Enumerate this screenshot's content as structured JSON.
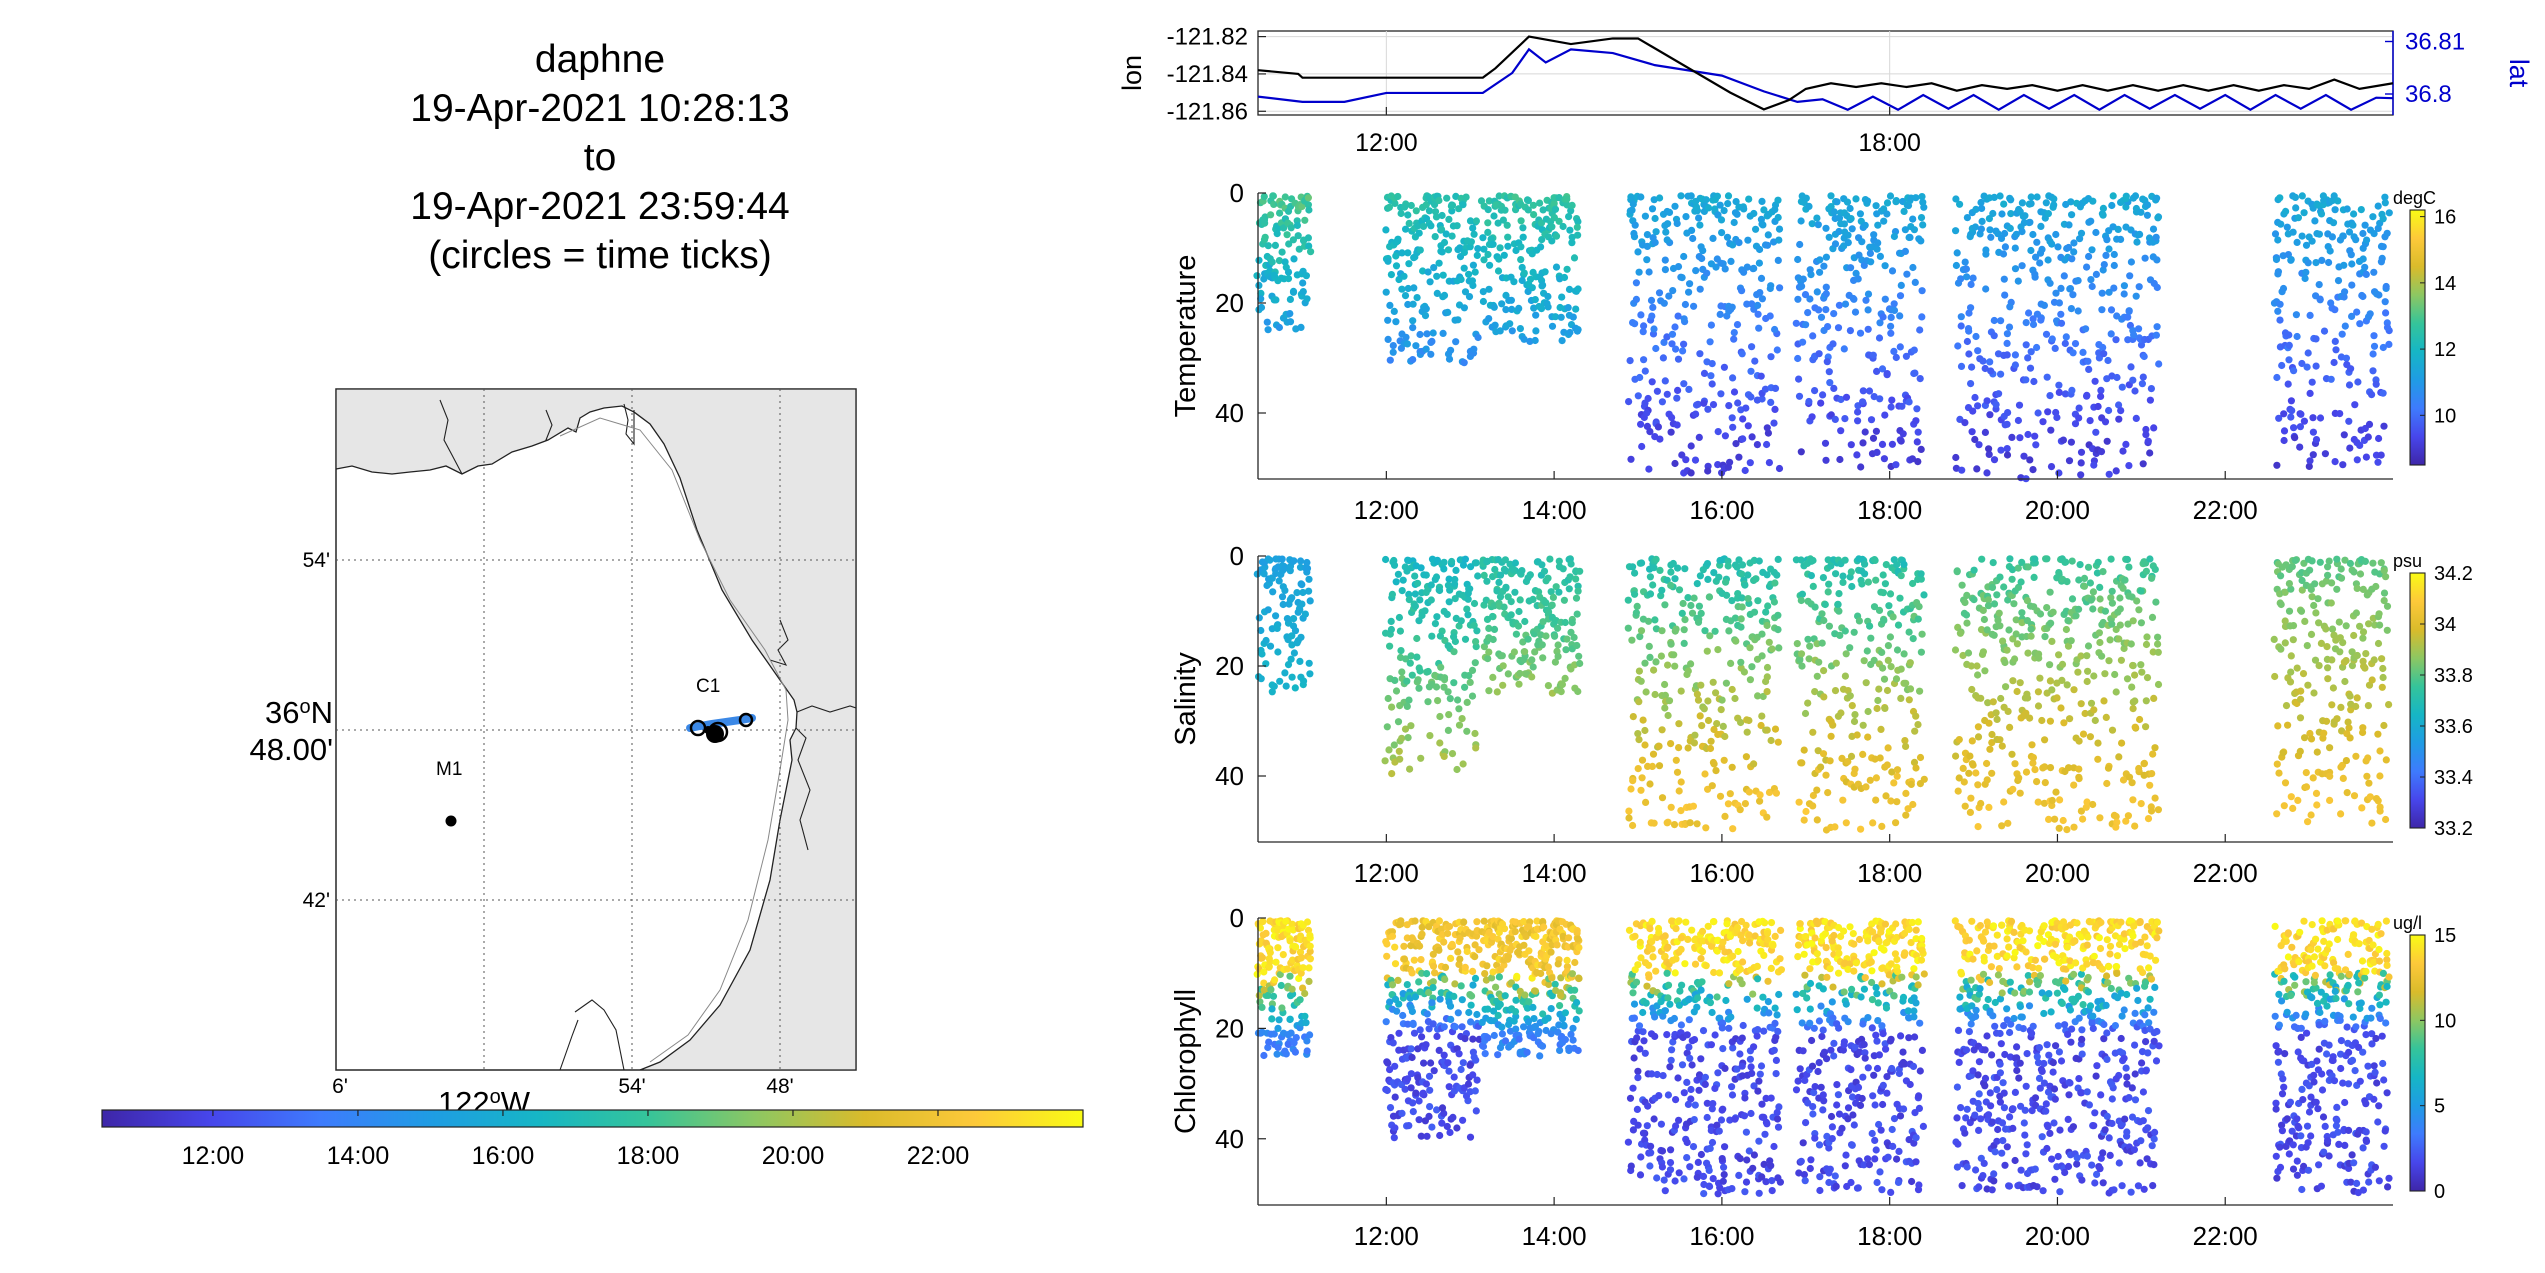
{
  "title": {
    "platform": "daphne",
    "start": "19-Apr-2021 10:28:13",
    "to": "to",
    "end": "19-Apr-2021 23:59:44",
    "note": "(circles = time ticks)"
  },
  "colors": {
    "blue": "#0000cc",
    "land": "#e6e6e6",
    "track": "#3b88e6",
    "parula": [
      "#3e26a8",
      "#4746eb",
      "#3e7bfd",
      "#1f9ce4",
      "#16b6c5",
      "#35c49a",
      "#8dc762",
      "#dabb2b",
      "#fdc93a",
      "#f9fb15"
    ]
  },
  "map": {
    "lat_ticks": [
      "54'",
      "36°N 48.00'",
      "42'"
    ],
    "lat_tick_main": "36",
    "lat_tick_sup": "o",
    "lat_tick_hemi": "N",
    "lat_tick_min": "48.00'",
    "lon_ticks": [
      "6'",
      "122°W",
      "54'",
      "48'"
    ],
    "lon_tick_main": "122",
    "lon_tick_sup": "o",
    "lon_tick_hemi": "W",
    "stations": [
      {
        "name": "C1"
      },
      {
        "name": "M1"
      }
    ],
    "colorbar_ticks": [
      "12:00",
      "14:00",
      "16:00",
      "18:00",
      "20:00",
      "22:00"
    ]
  },
  "chart_data": [
    {
      "type": "line",
      "title": "",
      "x_ticks": [
        "12:00",
        "18:00"
      ],
      "xlim_hours": [
        10.47,
        24.0
      ],
      "series": [
        {
          "name": "lon",
          "color": "#000000",
          "x": [
            10.47,
            10.95,
            11.0,
            11.5,
            12.0,
            12.5,
            13.15,
            13.3,
            13.7,
            14.2,
            14.7,
            15.0,
            16.1,
            16.5,
            16.8,
            17.0,
            17.3,
            17.6,
            17.9,
            18.2,
            18.5,
            18.8,
            19.1,
            19.4,
            19.7,
            20.0,
            20.3,
            20.6,
            20.9,
            21.2,
            21.5,
            21.8,
            22.1,
            22.4,
            22.7,
            23.0,
            23.3,
            23.6,
            24.0
          ],
          "y": [
            -121.838,
            -121.84,
            -121.842,
            -121.842,
            -121.842,
            -121.842,
            -121.842,
            -121.837,
            -121.82,
            -121.824,
            -121.821,
            -121.821,
            -121.85,
            -121.859,
            -121.854,
            -121.848,
            -121.845,
            -121.847,
            -121.845,
            -121.847,
            -121.845,
            -121.849,
            -121.846,
            -121.848,
            -121.846,
            -121.849,
            -121.846,
            -121.849,
            -121.846,
            -121.849,
            -121.846,
            -121.849,
            -121.846,
            -121.849,
            -121.846,
            -121.848,
            -121.843,
            -121.848,
            -121.845
          ]
        },
        {
          "name": "lat",
          "color": "#0000cc",
          "x": [
            10.47,
            11.0,
            11.5,
            12.0,
            13.15,
            13.5,
            13.7,
            13.9,
            14.2,
            14.7,
            15.2,
            16.0,
            16.5,
            16.9,
            17.2,
            17.5,
            17.8,
            18.1,
            18.4,
            18.7,
            19.0,
            19.3,
            19.6,
            19.9,
            20.2,
            20.5,
            20.8,
            21.1,
            21.4,
            21.7,
            22.0,
            22.3,
            22.6,
            22.9,
            23.2,
            23.5,
            23.8,
            24.0
          ],
          "y": [
            36.7995,
            36.7985,
            36.7985,
            36.8002,
            36.8002,
            36.804,
            36.8085,
            36.806,
            36.8085,
            36.8078,
            36.8055,
            36.8035,
            36.8005,
            36.7985,
            36.799,
            36.797,
            36.7995,
            36.797,
            36.7998,
            36.7972,
            36.7998,
            36.797,
            36.7998,
            36.7972,
            36.7998,
            36.797,
            36.7998,
            36.7972,
            36.7998,
            36.7972,
            36.7998,
            36.797,
            36.7998,
            36.7972,
            36.7998,
            36.797,
            36.7993,
            36.7992
          ]
        }
      ],
      "ylabel_left": "lon",
      "ylim_left": [
        -121.862,
        -121.817
      ],
      "yticks_left": [
        "-121.82",
        "-121.84",
        "-121.86"
      ],
      "ylabel_right": "lat",
      "ylim_right": [
        36.796,
        36.812
      ],
      "yticks_right": [
        "36.81",
        "36.8"
      ],
      "grid": true
    },
    {
      "type": "scatter",
      "ylabel": "Temperature",
      "unit": "degC",
      "clim": [
        8.5,
        16.2
      ],
      "colorbar_ticks": [
        "16",
        "14",
        "12",
        "10"
      ],
      "x_ticks": [
        "12:00",
        "14:00",
        "16:00",
        "18:00",
        "20:00",
        "22:00"
      ],
      "y_ticks": [
        "0",
        "20",
        "40"
      ],
      "ylim": [
        0,
        52
      ],
      "xlim_hours": [
        10.47,
        24.0
      ],
      "profile_segments": [
        [
          10.47,
          11.1,
          0.5,
          25,
          13,
          9.5
        ],
        [
          12.0,
          13.1,
          0.5,
          32,
          12.5,
          9.8
        ],
        [
          13.15,
          14.3,
          0.5,
          27,
          12.7,
          10.0
        ],
        [
          14.9,
          16.7,
          0.5,
          52,
          11.5,
          9.2
        ],
        [
          16.9,
          18.4,
          0.5,
          50,
          11.5,
          9.2
        ],
        [
          18.8,
          21.2,
          0.5,
          52,
          11.5,
          9.2
        ],
        [
          22.6,
          23.95,
          0.5,
          50,
          11.5,
          9.2
        ]
      ],
      "sample_step_hours": 0.022
    },
    {
      "type": "scatter",
      "ylabel": "Salinity",
      "unit": "psu",
      "clim": [
        33.2,
        34.2
      ],
      "colorbar_ticks": [
        "34.2",
        "34",
        "33.8",
        "33.6",
        "33.4",
        "33.2"
      ],
      "x_ticks": [
        "12:00",
        "14:00",
        "16:00",
        "18:00",
        "20:00",
        "22:00"
      ],
      "y_ticks": [
        "0",
        "20",
        "40"
      ],
      "ylim": [
        0,
        52
      ],
      "xlim_hours": [
        10.47,
        24.0
      ],
      "profile_segments": [
        [
          10.47,
          11.1,
          0.5,
          25,
          33.55,
          33.7
        ],
        [
          12.0,
          13.1,
          0.5,
          40,
          33.65,
          33.95
        ],
        [
          13.15,
          14.3,
          0.5,
          25,
          33.7,
          34.0
        ],
        [
          14.9,
          16.7,
          0.5,
          50,
          33.7,
          34.05
        ],
        [
          16.9,
          18.4,
          0.5,
          50,
          33.7,
          34.05
        ],
        [
          18.8,
          21.2,
          0.5,
          50,
          33.75,
          34.05
        ],
        [
          22.6,
          23.95,
          0.5,
          50,
          33.8,
          34.05
        ]
      ],
      "sample_step_hours": 0.022
    },
    {
      "type": "scatter",
      "ylabel": "Chlorophyll",
      "unit": "ug/l",
      "clim": [
        0,
        15
      ],
      "colorbar_ticks": [
        "15",
        "10",
        "5",
        "0"
      ],
      "x_ticks": [
        "12:00",
        "14:00",
        "16:00",
        "18:00",
        "20:00",
        "22:00"
      ],
      "y_ticks": [
        "0",
        "20",
        "40"
      ],
      "ylim": [
        0,
        52
      ],
      "xlim_hours": [
        10.47,
        24.0
      ],
      "profile_segments": [
        [
          10.47,
          11.1,
          0.5,
          25,
          15,
          3
        ],
        [
          12.0,
          13.1,
          0.5,
          40,
          14,
          1
        ],
        [
          13.15,
          14.3,
          0.5,
          25,
          14,
          3
        ],
        [
          14.9,
          16.7,
          0.5,
          50,
          15,
          1
        ],
        [
          16.9,
          18.4,
          0.5,
          50,
          15,
          1
        ],
        [
          18.8,
          21.2,
          0.5,
          50,
          15,
          1
        ],
        [
          22.6,
          23.95,
          0.5,
          50,
          15,
          1
        ]
      ],
      "sample_step_hours": 0.014
    }
  ]
}
